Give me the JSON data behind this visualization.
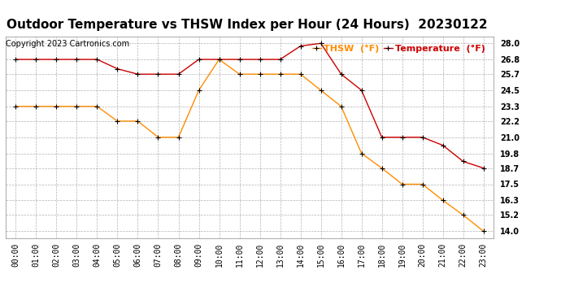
{
  "title": "Outdoor Temperature vs THSW Index per Hour (24 Hours)  20230122",
  "copyright": "Copyright 2023 Cartronics.com",
  "hours": [
    "00:00",
    "01:00",
    "02:00",
    "03:00",
    "04:00",
    "05:00",
    "06:00",
    "07:00",
    "08:00",
    "09:00",
    "10:00",
    "11:00",
    "12:00",
    "13:00",
    "14:00",
    "15:00",
    "16:00",
    "17:00",
    "18:00",
    "19:00",
    "20:00",
    "21:00",
    "22:00",
    "23:00"
  ],
  "thsw": [
    23.3,
    23.3,
    23.3,
    23.3,
    23.3,
    22.2,
    22.2,
    21.0,
    21.0,
    24.5,
    26.8,
    25.7,
    25.7,
    25.7,
    25.7,
    24.5,
    23.3,
    19.8,
    18.7,
    17.5,
    17.5,
    16.3,
    15.2,
    14.0
  ],
  "temperature": [
    26.8,
    26.8,
    26.8,
    26.8,
    26.8,
    26.1,
    25.7,
    25.7,
    25.7,
    26.8,
    26.8,
    26.8,
    26.8,
    26.8,
    27.8,
    28.0,
    25.7,
    24.5,
    21.0,
    21.0,
    21.0,
    20.4,
    19.2,
    18.7
  ],
  "thsw_color": "#FF8C00",
  "temp_color": "#CC0000",
  "marker_color": "black",
  "bg_color": "#FFFFFF",
  "plot_bg_color": "#FFFFFF",
  "grid_color": "#AAAAAA",
  "yticks": [
    14.0,
    15.2,
    16.3,
    17.5,
    18.7,
    19.8,
    21.0,
    22.2,
    23.3,
    24.5,
    25.7,
    26.8,
    28.0
  ],
  "ylim": [
    13.5,
    28.5
  ],
  "legend_thsw": "THSW  (°F)",
  "legend_temp": "Temperature  (°F)",
  "title_fontsize": 11,
  "copyright_fontsize": 7,
  "legend_fontsize": 8,
  "tick_fontsize": 7,
  "ylabel_tick_fontsize": 7
}
